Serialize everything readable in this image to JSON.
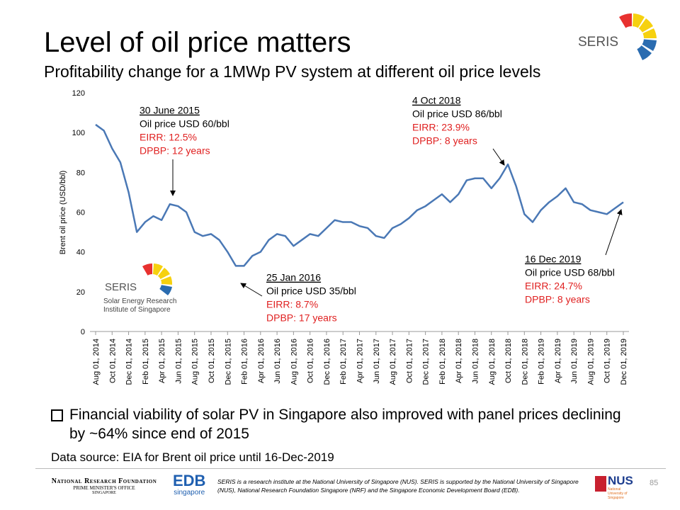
{
  "slide": {
    "title": "Level of oil price matters",
    "subtitle": "Profitability change for a 1MWp PV system at different oil price levels",
    "bullet": "Financial viability of solar PV in Singapore also improved with panel prices declining by ~64% since end of 2015",
    "source": "Data source: EIA for Brent oil price until 16-Dec-2019",
    "logo_text": "SERIS",
    "logo_caption": "Solar Energy Research Institute of Singapore",
    "footer_text": "SERIS is a research institute at the National University of Singapore (NUS). SERIS is supported by the National University of Singapore (NUS), National Research Foundation Singapore (NRF) and the Singapore Economic Development Board (EDB).",
    "nrf": "National Research Foundation",
    "nrf_sub1": "Prime Minister's Office",
    "nrf_sub2": "Singapore",
    "edb": "EDB",
    "edb_sub": "singapore",
    "nus": "NUS",
    "nus_sub": "National University of Singapore",
    "page": "85"
  },
  "chart_data": {
    "type": "line",
    "y_label": "Brent oil price (USD/bbl)",
    "color": "#4a78b5",
    "ylim": [
      0,
      120
    ],
    "yticks": [
      0,
      20,
      40,
      60,
      80,
      100,
      120
    ],
    "categories": [
      "Aug 01, 2014",
      null,
      "Oct 01, 2014",
      null,
      "Dec 01, 2014",
      null,
      "Feb 01, 2015",
      null,
      "Apr 01, 2015",
      null,
      "Jun 01, 2015",
      null,
      "Aug 01, 2015",
      null,
      "Oct 01, 2015",
      null,
      "Dec 01, 2015",
      null,
      "Feb 01, 2016",
      null,
      "Apr 01, 2016",
      null,
      "Jun 01, 2016",
      null,
      "Aug 01, 2016",
      null,
      "Oct 01, 2016",
      null,
      "Dec 01, 2016",
      null,
      "Feb 01, 2017",
      null,
      "Apr 01, 2017",
      null,
      "Jun 01, 2017",
      null,
      "Aug 01, 2017",
      null,
      "Oct 01, 2017",
      null,
      "Dec 01, 2017",
      null,
      "Feb 01, 2018",
      null,
      "Apr 01, 2018",
      null,
      "Jun 01, 2018",
      null,
      "Aug 01, 2018",
      null,
      "Oct 01, 2018",
      null,
      "Dec 01, 2018",
      null,
      "Feb 01, 2019",
      null,
      "Apr 01, 2019",
      null,
      "Jun 01, 2019",
      null,
      "Aug 01, 2019",
      null,
      "Oct 01, 2019",
      null,
      "Dec 01, 2019"
    ],
    "values": [
      104,
      101,
      92,
      85,
      70,
      50,
      55,
      58,
      56,
      64,
      63,
      60,
      50,
      48,
      49,
      46,
      40,
      33,
      33,
      38,
      40,
      46,
      49,
      48,
      43,
      46,
      49,
      48,
      52,
      56,
      55,
      55,
      53,
      52,
      48,
      47,
      52,
      54,
      57,
      61,
      63,
      66,
      69,
      65,
      69,
      76,
      77,
      77,
      72,
      77,
      84,
      73,
      59,
      55,
      61,
      65,
      68,
      72,
      65,
      64,
      61,
      60,
      59,
      62,
      65
    ],
    "annotations": [
      {
        "date": "30 June 2015",
        "price": "Oil price USD 60/bbl",
        "eirr": "EIRR: 12.5%",
        "dpbp": "DPBP: 12 years"
      },
      {
        "date": "25 Jan 2016",
        "price": "Oil price USD 35/bbl",
        "eirr": "EIRR: 8.7%",
        "dpbp": "DPBP: 17 years"
      },
      {
        "date": "4 Oct 2018",
        "price": "Oil price USD 86/bbl",
        "eirr": "EIRR: 23.9%",
        "dpbp": "DPBP: 8 years"
      },
      {
        "date": "16 Dec 2019",
        "price": "Oil price USD 68/bbl",
        "eirr": "EIRR: 24.7%",
        "dpbp": "DPBP: 8 years"
      }
    ]
  }
}
